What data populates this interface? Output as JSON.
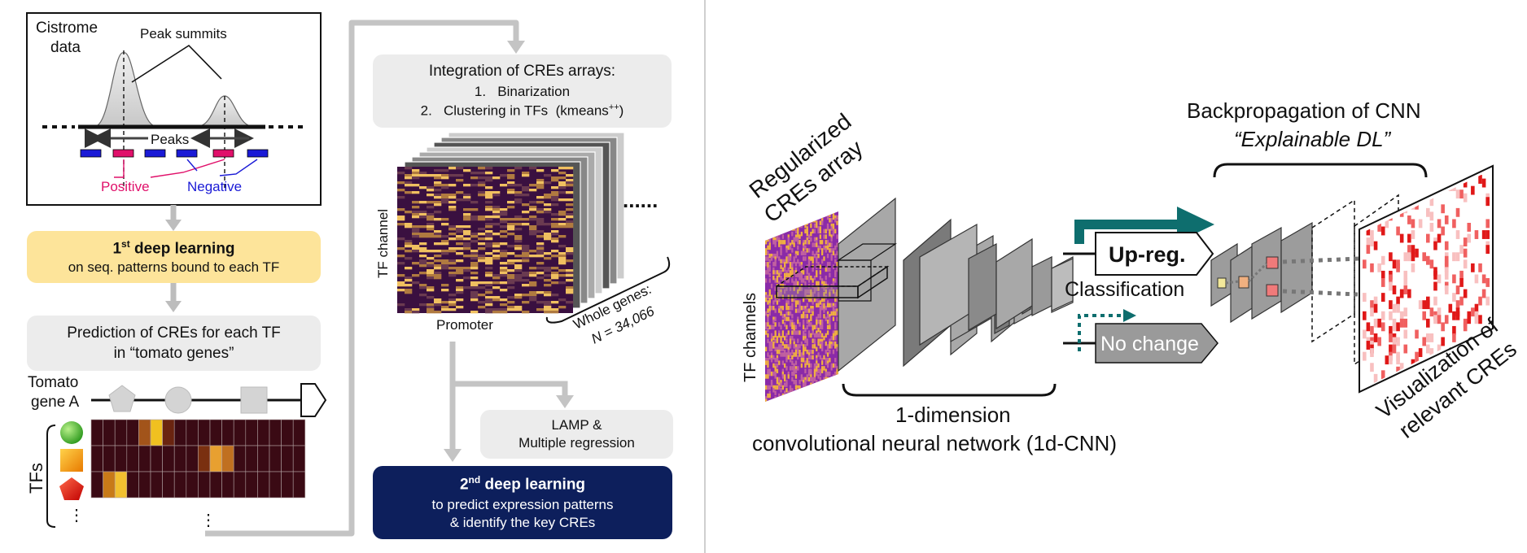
{
  "left": {
    "cistrome": {
      "title_line1": "Cistrome",
      "title_line2": "data",
      "peak_summits": "Peak summits",
      "peaks": "Peaks",
      "positive": "Positive",
      "negative": "Negative"
    },
    "first_dl": {
      "title": "1",
      "sup": "st",
      "title_rest": " deep learning",
      "sub": "on seq. patterns bound to each TF",
      "bg_color": "#fde49a"
    },
    "prediction": {
      "line1": "Prediction of CREs for each TF",
      "line2": "in “tomato genes”"
    },
    "gene": {
      "line1": "Tomato",
      "line2": "gene A"
    },
    "tfs_label": "TFs",
    "ellipsis": "⋮"
  },
  "middle": {
    "integration": {
      "title": "Integration of CREs arrays:",
      "item1": "1.   Binarization",
      "item2": "2.   Clustering in TFs  (kmeans",
      "item2_sup": "++",
      "item2_end": ")"
    },
    "tf_channel": "TF channel",
    "promoter": "Promoter",
    "dots": "......",
    "whole_genes_line1": "Whole genes:",
    "whole_genes_line2": "N = 34,066",
    "lamp": {
      "line1": "LAMP &",
      "line2": "Multiple regression"
    },
    "second_dl": {
      "title": "2",
      "sup": "nd",
      "title_rest": " deep learning",
      "sub1": "to predict expression patterns",
      "sub2": "& identify the key CREs",
      "bg_color": "#0d1f5c"
    }
  },
  "right": {
    "regularized_line1": "Regularized",
    "regularized_line2": "CREs array",
    "tf_channels": "TF channels",
    "cnn_line1": "1-dimension",
    "cnn_line2": "convolutional neural network (1d-CNN)",
    "upreg": "Up-reg.",
    "classification": "Classification",
    "nochange": "No change",
    "backprop_line1": "Backpropagation of CNN",
    "backprop_line2": "“Explainable DL”",
    "visualization_line1": "Visualization of",
    "visualization_line2": "relevant CREs",
    "accent_color": "#0e6e6e"
  }
}
